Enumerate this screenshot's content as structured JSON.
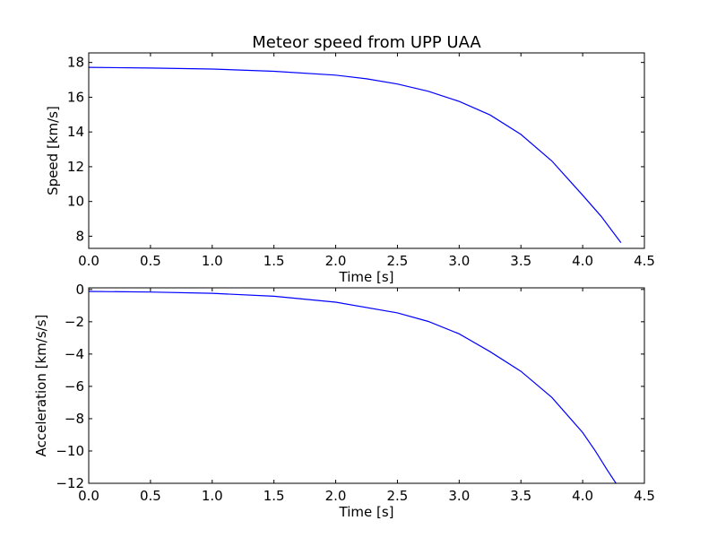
{
  "chart_data": [
    {
      "type": "line",
      "title": "Meteor speed from  UPP UAA",
      "xlabel": "Time [s]",
      "ylabel": "Speed [km/s]",
      "xlim": [
        0.0,
        4.5
      ],
      "ylim": [
        7.3,
        18.55
      ],
      "xticks": [
        "0.0",
        "0.5",
        "1.0",
        "1.5",
        "2.0",
        "2.5",
        "3.0",
        "3.5",
        "4.0",
        "4.5"
      ],
      "xtick_values": [
        0,
        0.5,
        1.0,
        1.5,
        2.0,
        2.5,
        3.0,
        3.5,
        4.0,
        4.5
      ],
      "yticks": [
        "8",
        "10",
        "12",
        "14",
        "16",
        "18"
      ],
      "ytick_values": [
        8,
        10,
        12,
        14,
        16,
        18
      ],
      "grid": false,
      "color": "#0000ff",
      "series": [
        {
          "x": [
            0.0,
            0.5,
            1.0,
            1.5,
            2.0,
            2.25,
            2.5,
            2.75,
            3.0,
            3.25,
            3.5,
            3.75,
            4.0,
            4.15,
            4.31
          ],
          "y": [
            17.72,
            17.68,
            17.62,
            17.49,
            17.27,
            17.06,
            16.76,
            16.34,
            15.76,
            14.98,
            13.86,
            12.33,
            10.36,
            9.14,
            7.63
          ]
        }
      ]
    },
    {
      "type": "line",
      "title": "",
      "xlabel": "Time [s]",
      "ylabel": "Acceleration [km/s/s]",
      "xlim": [
        0.0,
        4.5
      ],
      "ylim": [
        -12,
        0.1
      ],
      "xticks": [
        "0.0",
        "0.5",
        "1.0",
        "1.5",
        "2.0",
        "2.5",
        "3.0",
        "3.5",
        "4.0",
        "4.5"
      ],
      "xtick_values": [
        0,
        0.5,
        1.0,
        1.5,
        2.0,
        2.5,
        3.0,
        3.5,
        4.0,
        4.5
      ],
      "yticks": [
        "0",
        "−2",
        "−4",
        "−6",
        "−8",
        "−10",
        "−12"
      ],
      "ytick_values": [
        0,
        -2,
        -4,
        -6,
        -8,
        -10,
        -12
      ],
      "grid": false,
      "color": "#0000ff",
      "series": [
        {
          "x": [
            0.0,
            0.5,
            1.0,
            1.5,
            2.0,
            2.5,
            2.75,
            3.0,
            3.25,
            3.5,
            3.75,
            4.0,
            4.1,
            4.2,
            4.27
          ],
          "y": [
            -0.12,
            -0.16,
            -0.24,
            -0.42,
            -0.79,
            -1.45,
            -1.98,
            -2.75,
            -3.85,
            -5.07,
            -6.68,
            -8.86,
            -9.97,
            -11.19,
            -12.0
          ]
        }
      ]
    }
  ]
}
